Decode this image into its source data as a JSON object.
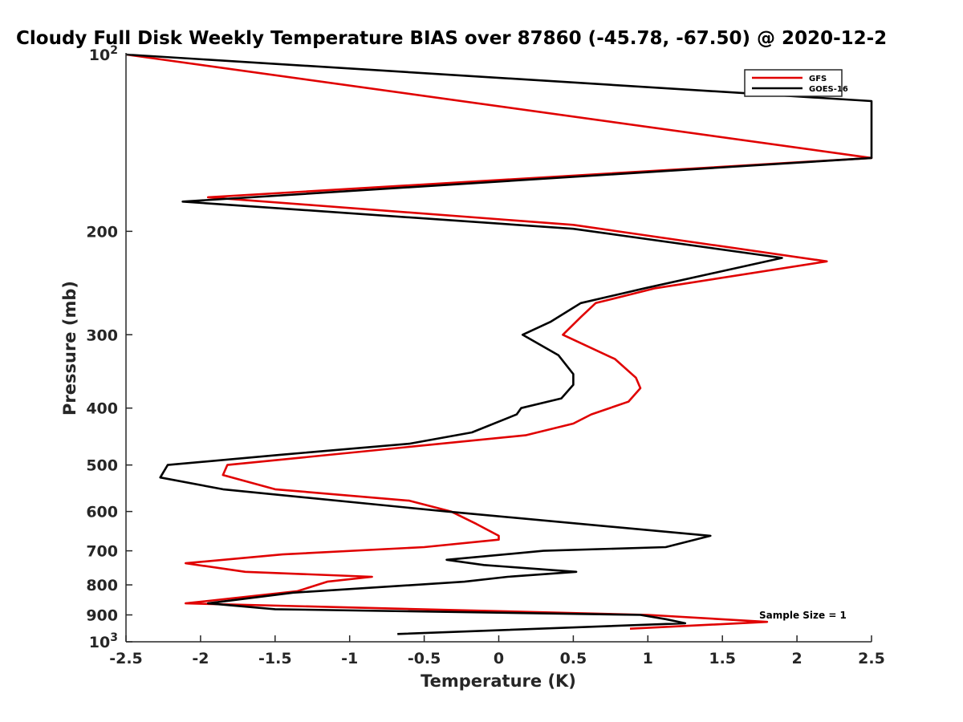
{
  "chart_data": {
    "type": "line",
    "title": "Cloudy Full Disk Weekly Temperature BIAS over 87860 (-45.78, -67.50) @ 2020-12-2",
    "xlabel": "Temperature (K)",
    "ylabel": "Pressure (mb)",
    "xlim": [
      -2.5,
      2.5
    ],
    "ylim": [
      100,
      1000
    ],
    "y_scale": "log",
    "y_reversed": true,
    "grid": false,
    "legend_position": "top-right",
    "x_ticks": [
      "-2.5",
      "-2",
      "-1.5",
      "-1",
      "-0.5",
      "0",
      "0.5",
      "1",
      "1.5",
      "2",
      "2.5"
    ],
    "y_ticks": [
      {
        "value": 100,
        "base": "10",
        "exp": "2"
      },
      {
        "value": 200,
        "label": "200"
      },
      {
        "value": 300,
        "label": "300"
      },
      {
        "value": 400,
        "label": "400"
      },
      {
        "value": 500,
        "label": "500"
      },
      {
        "value": 600,
        "label": "600"
      },
      {
        "value": 700,
        "label": "700"
      },
      {
        "value": 800,
        "label": "800"
      },
      {
        "value": 900,
        "label": "900"
      },
      {
        "value": 1000,
        "base": "10",
        "exp": "3"
      }
    ],
    "annotation": "Sample Size = 1",
    "series": [
      {
        "name": "GFS",
        "color": "#e00000",
        "points": [
          [
            -2.5,
            100
          ],
          [
            2.5,
            150
          ],
          [
            -1.95,
            175
          ],
          [
            0.5,
            195
          ],
          [
            0.8,
            200
          ],
          [
            2.2,
            225
          ],
          [
            1.05,
            250
          ],
          [
            0.65,
            265
          ],
          [
            0.55,
            280
          ],
          [
            0.43,
            300
          ],
          [
            0.78,
            330
          ],
          [
            0.92,
            355
          ],
          [
            0.95,
            370
          ],
          [
            0.87,
            390
          ],
          [
            0.62,
            410
          ],
          [
            0.5,
            425
          ],
          [
            0.18,
            445
          ],
          [
            -1.82,
            500
          ],
          [
            -1.85,
            520
          ],
          [
            -1.5,
            550
          ],
          [
            -0.6,
            575
          ],
          [
            -0.32,
            600
          ],
          [
            -0.15,
            630
          ],
          [
            0.0,
            660
          ],
          [
            0.0,
            670
          ],
          [
            -0.5,
            690
          ],
          [
            -1.45,
            710
          ],
          [
            -2.1,
            735
          ],
          [
            -1.7,
            760
          ],
          [
            -0.85,
            775
          ],
          [
            -1.15,
            790
          ],
          [
            -1.35,
            820
          ],
          [
            -2.1,
            860
          ],
          [
            1.0,
            900
          ],
          [
            1.8,
            925
          ],
          [
            0.88,
            950
          ]
        ]
      },
      {
        "name": "GOES-16",
        "color": "#000000",
        "points": [
          [
            -2.5,
            100
          ],
          [
            2.5,
            120
          ],
          [
            2.5,
            150
          ],
          [
            -2.12,
            178
          ],
          [
            0.5,
            198
          ],
          [
            1.9,
            222
          ],
          [
            0.98,
            250
          ],
          [
            0.55,
            265
          ],
          [
            0.35,
            285
          ],
          [
            0.16,
            300
          ],
          [
            0.4,
            325
          ],
          [
            0.5,
            350
          ],
          [
            0.5,
            365
          ],
          [
            0.42,
            385
          ],
          [
            0.15,
            400
          ],
          [
            0.12,
            410
          ],
          [
            -0.18,
            440
          ],
          [
            -0.6,
            460
          ],
          [
            -1.45,
            480
          ],
          [
            -2.22,
            500
          ],
          [
            -2.27,
            525
          ],
          [
            -1.85,
            550
          ],
          [
            -0.35,
            600
          ],
          [
            0.99,
            645
          ],
          [
            1.42,
            660
          ],
          [
            1.12,
            690
          ],
          [
            0.3,
            700
          ],
          [
            -0.35,
            725
          ],
          [
            -0.1,
            740
          ],
          [
            0.52,
            760
          ],
          [
            0.06,
            775
          ],
          [
            -0.23,
            790
          ],
          [
            -1.38,
            825
          ],
          [
            -1.95,
            860
          ],
          [
            -1.5,
            880
          ],
          [
            0.95,
            900
          ],
          [
            1.12,
            915
          ],
          [
            1.25,
            930
          ],
          [
            -0.68,
            970
          ]
        ]
      }
    ]
  }
}
